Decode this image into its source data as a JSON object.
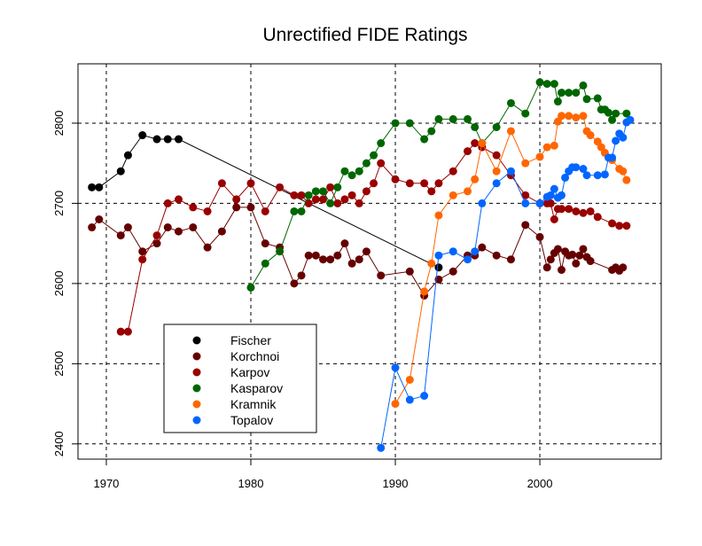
{
  "chart_data": {
    "type": "line",
    "title": "Unrectified FIDE Ratings",
    "xlabel": "",
    "ylabel": "",
    "xlim": [
      1968.04,
      2008.4
    ],
    "ylim": [
      2381,
      2874
    ],
    "xticks": [
      1970,
      1980,
      1990,
      2000
    ],
    "yticks": [
      2400,
      2500,
      2600,
      2700,
      2800
    ],
    "grid": true,
    "legend_position": "bottom-left",
    "series": [
      {
        "name": "Fischer",
        "color": "#000000",
        "x": [
          1969,
          1969.5,
          1971,
          1971.5,
          1972.5,
          1973.5,
          1974.25,
          1975,
          1993
        ],
        "y": [
          2720,
          2720,
          2740,
          2760,
          2785,
          2780,
          2780,
          2780,
          2620
        ]
      },
      {
        "name": "Korchnoi",
        "color": "#660000",
        "x": [
          1969,
          1969.5,
          1971,
          1971.5,
          1972.5,
          1973.5,
          1974.25,
          1975,
          1976,
          1977,
          1978,
          1979,
          1980,
          1981,
          1982,
          1983,
          1983.5,
          1984,
          1984.5,
          1985,
          1985.5,
          1986,
          1986.5,
          1987,
          1987.5,
          1988,
          1989,
          1991,
          1992,
          1993,
          1994,
          1995,
          1995.5,
          1996,
          1997,
          1998,
          1999,
          2000,
          2000.5,
          2000.75,
          2001,
          2001.25,
          2001.5,
          2001.75,
          2002,
          2002.25,
          2002.5,
          2002.75,
          2003,
          2003.25,
          2003.5,
          2005,
          2005.25,
          2005.5,
          2005.75
        ],
        "y": [
          2670,
          2680,
          2660,
          2670,
          2640,
          2650,
          2670,
          2665,
          2670,
          2645,
          2665,
          2695,
          2695,
          2650,
          2645,
          2600,
          2610,
          2635,
          2635,
          2630,
          2630,
          2635,
          2650,
          2625,
          2630,
          2640,
          2610,
          2615,
          2585,
          2605,
          2615,
          2635,
          2635,
          2645,
          2635,
          2630,
          2673,
          2658,
          2620,
          2630,
          2638,
          2643,
          2617,
          2640,
          2635,
          2636,
          2625,
          2635,
          2643,
          2633,
          2628,
          2617,
          2620,
          2616,
          2620
        ]
      },
      {
        "name": "Karpov",
        "color": "#990000",
        "x": [
          1971,
          1971.5,
          1972.5,
          1973.5,
          1974.25,
          1975,
          1976,
          1977,
          1978,
          1979,
          1980,
          1981,
          1982,
          1983,
          1983.5,
          1984,
          1984.5,
          1985,
          1985.5,
          1986,
          1986.5,
          1987,
          1987.5,
          1988,
          1988.5,
          1989,
          1990,
          1991,
          1992,
          1992.5,
          1993,
          1994,
          1995,
          1995.5,
          1996,
          1997,
          1998,
          1999,
          2000,
          2000.5,
          2000.75,
          2001,
          2001.25,
          2001.5,
          2002,
          2002.5,
          2003,
          2003.5,
          2004,
          2005,
          2005.5,
          2006
        ],
        "y": [
          2540,
          2540,
          2630,
          2660,
          2700,
          2705,
          2695,
          2690,
          2725,
          2705,
          2725,
          2690,
          2720,
          2710,
          2710,
          2700,
          2705,
          2705,
          2720,
          2700,
          2705,
          2710,
          2700,
          2715,
          2725,
          2750,
          2730,
          2725,
          2725,
          2715,
          2725,
          2740,
          2765,
          2775,
          2770,
          2760,
          2735,
          2710,
          2700,
          2700,
          2700,
          2680,
          2693,
          2693,
          2693,
          2690,
          2688,
          2690,
          2683,
          2675,
          2672,
          2672
        ]
      },
      {
        "name": "Kasparov",
        "color": "#006600",
        "x": [
          1980,
          1981,
          1982,
          1983,
          1983.5,
          1984,
          1984.5,
          1985,
          1985.5,
          1986,
          1986.5,
          1987,
          1987.5,
          1988,
          1988.5,
          1989,
          1990,
          1991,
          1992,
          1992.5,
          1993,
          1994,
          1995,
          1995.5,
          1996,
          1997,
          1998,
          1999,
          2000,
          2000.5,
          2001,
          2001.25,
          2001.5,
          2002,
          2002.5,
          2003,
          2003.25,
          2004,
          2004.25,
          2004.5,
          2004.75,
          2005,
          2005.25,
          2006
        ],
        "y": [
          2595,
          2625,
          2640,
          2690,
          2690,
          2710,
          2715,
          2715,
          2700,
          2720,
          2740,
          2735,
          2740,
          2750,
          2760,
          2775,
          2800,
          2800,
          2780,
          2790,
          2805,
          2805,
          2805,
          2795,
          2775,
          2795,
          2825,
          2812,
          2851,
          2849,
          2849,
          2827,
          2838,
          2838,
          2838,
          2847,
          2830,
          2831,
          2817,
          2817,
          2813,
          2804,
          2812,
          2812
        ]
      },
      {
        "name": "Kramnik",
        "color": "#ff6600",
        "x": [
          1990,
          1991,
          1992,
          1992.5,
          1993,
          1994,
          1995,
          1995.5,
          1996,
          1997,
          1998,
          1999,
          2000,
          2000.5,
          2001,
          2001.25,
          2001.5,
          2002,
          2002.5,
          2003,
          2003.25,
          2003.5,
          2004,
          2004.25,
          2004.5,
          2005,
          2005.5,
          2005.75,
          2006
        ],
        "y": [
          2450,
          2480,
          2590,
          2625,
          2685,
          2710,
          2715,
          2730,
          2775,
          2740,
          2790,
          2750,
          2758,
          2770,
          2772,
          2802,
          2809,
          2809,
          2807,
          2809,
          2790,
          2785,
          2777,
          2770,
          2763,
          2754,
          2743,
          2740,
          2729
        ]
      },
      {
        "name": "Topalov",
        "color": "#0066ff",
        "x": [
          1989,
          1990,
          1991,
          1992,
          1993,
          1994,
          1995,
          1995.5,
          1996,
          1997,
          1998,
          1999,
          2000,
          2000.5,
          2000.75,
          2001,
          2001.25,
          2001.5,
          2001.75,
          2002,
          2002.25,
          2002.5,
          2003,
          2003.25,
          2004,
          2004.5,
          2004.75,
          2005,
          2005.25,
          2005.5,
          2005.75,
          2006,
          2006.25
        ],
        "y": [
          2395,
          2495,
          2455,
          2460,
          2635,
          2640,
          2630,
          2640,
          2700,
          2725,
          2740,
          2700,
          2700,
          2708,
          2710,
          2718,
          2707,
          2710,
          2732,
          2740,
          2745,
          2745,
          2743,
          2735,
          2735,
          2736,
          2757,
          2757,
          2778,
          2787,
          2782,
          2801,
          2804
        ]
      }
    ]
  }
}
